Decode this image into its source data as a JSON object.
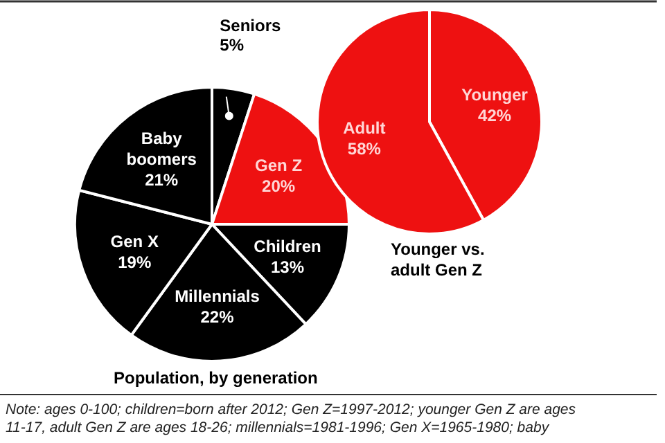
{
  "chart_data": [
    {
      "type": "pie",
      "title": "Population, by generation",
      "categories": [
        "Seniors",
        "Gen Z",
        "Children",
        "Millennials",
        "Gen X",
        "Baby boomers"
      ],
      "values": [
        5,
        20,
        13,
        22,
        19,
        21
      ],
      "value_labels": [
        "5%",
        "20%",
        "13%",
        "22%",
        "19%",
        "21%"
      ],
      "colors": [
        "#000000",
        "#ee1111",
        "#000000",
        "#000000",
        "#000000",
        "#000000"
      ],
      "annotations": [
        "Note: ages 0-100; children=born after 2012; Gen Z=1997-2012; younger Gen Z are ages 11-17, adult Gen Z are ages 18-26; millennials=1981-1996; Gen X=1965-1980; baby"
      ]
    },
    {
      "type": "pie",
      "title": "Younger vs. adult Gen Z",
      "categories": [
        "Younger",
        "Adult"
      ],
      "values": [
        42,
        58
      ],
      "value_labels": [
        "42%",
        "58%"
      ],
      "colors": [
        "#ee1111",
        "#ee1111"
      ]
    }
  ]
}
